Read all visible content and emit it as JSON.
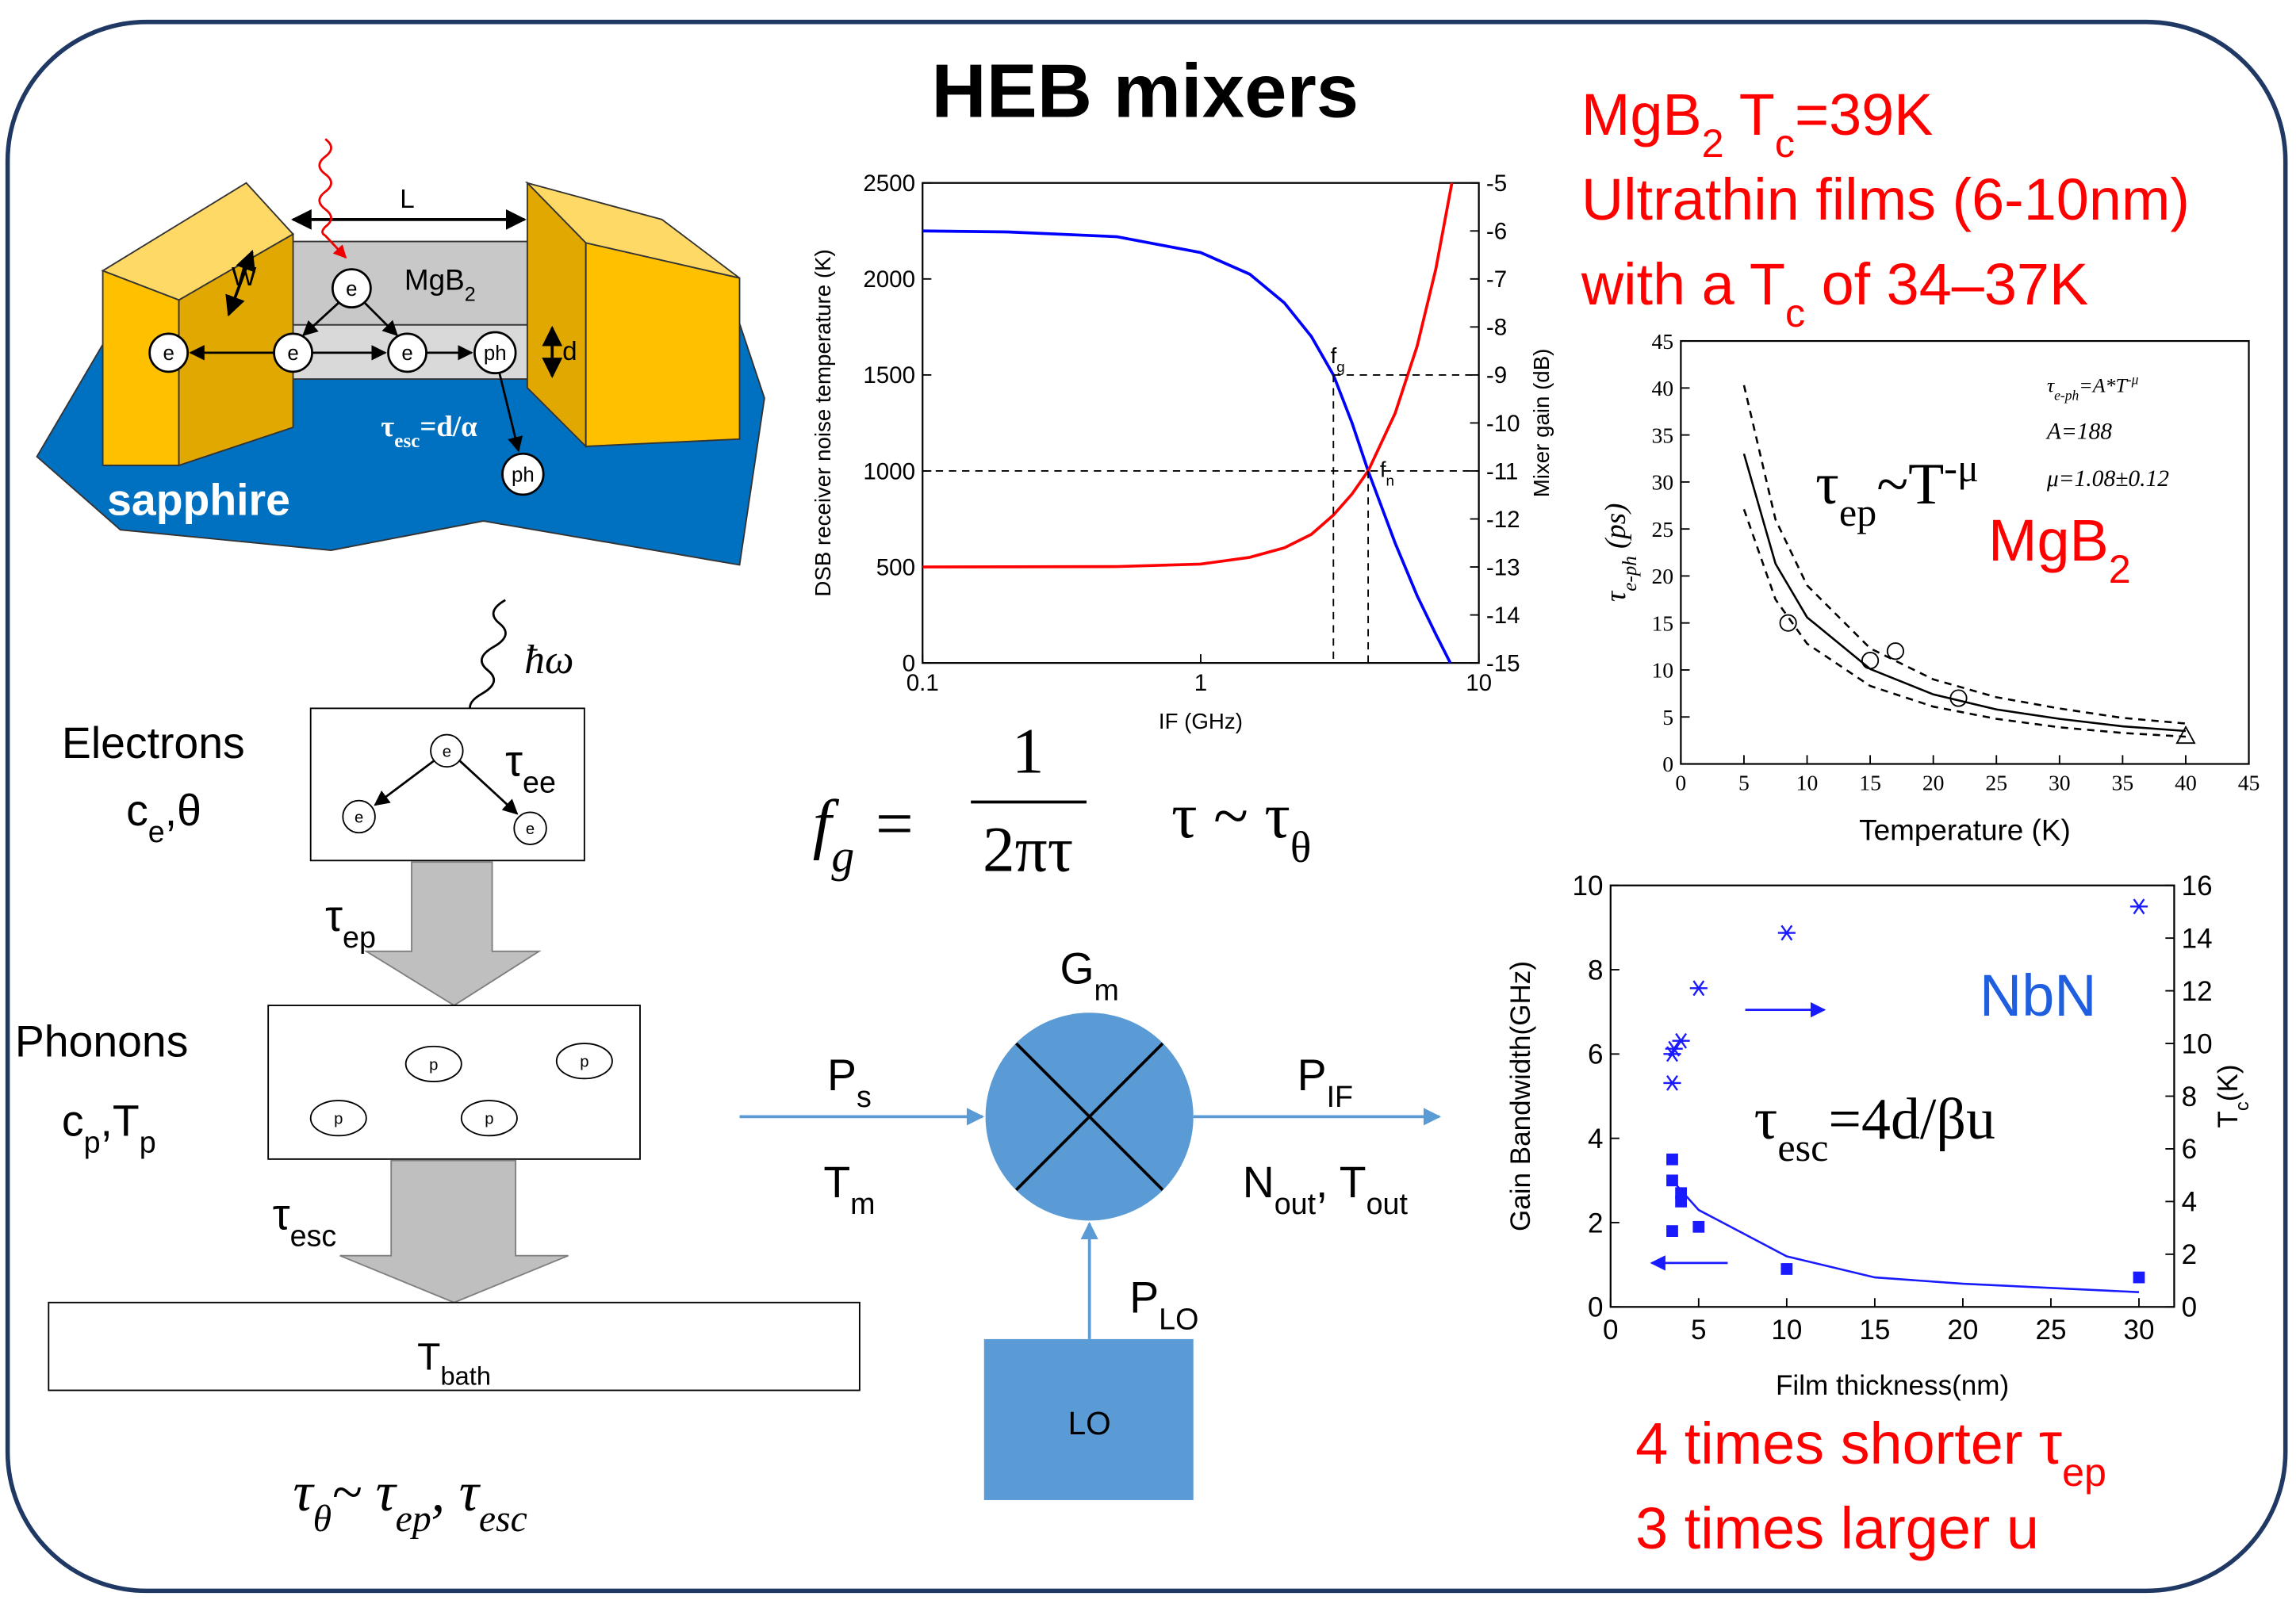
{
  "title": "HEB mixers",
  "notes": {
    "line1": [
      "MgB",
      "2",
      " T",
      "c",
      "=39K"
    ],
    "line2": "Ultrathin films (6-10nm)",
    "line3": [
      "with a T",
      "c",
      " of 34–37K"
    ],
    "line4": [
      "4 times shorter τ",
      "ep"
    ],
    "line5": "3 times larger u"
  },
  "device": {
    "length": "L",
    "width": "W",
    "film": [
      "MgB",
      "2"
    ],
    "electrons": [
      "e",
      "e",
      "e",
      "e"
    ],
    "phonons": [
      "ph",
      "ph"
    ],
    "thickness": "d",
    "escape": [
      "τ",
      "esc",
      "=d/α"
    ],
    "substrate": "sapphire"
  },
  "thermal": {
    "photon": "ħω",
    "electrons": "Electrons",
    "electron_params": [
      "c",
      "e",
      ",θ"
    ],
    "tau_ee": [
      "τ",
      "ee"
    ],
    "electron_labels": [
      "e",
      "e",
      "e"
    ],
    "tau_ep": [
      "τ",
      "ep"
    ],
    "phonons": "Phonons",
    "phonon_params": [
      "c",
      "p",
      ",T",
      "p"
    ],
    "phonon_labels": [
      "p",
      "p",
      "p",
      "p"
    ],
    "tau_esc": [
      "τ",
      "esc"
    ],
    "bath": [
      "T",
      "bath"
    ],
    "formula": [
      "τ",
      "θ",
      "~ τ",
      "ep",
      ", τ",
      "esc"
    ]
  },
  "formulas": {
    "fg": [
      "f",
      "g",
      " = "
    ],
    "numerator": "1",
    "denominator": "2πτ",
    "tau": [
      "τ ~ τ",
      "θ"
    ]
  },
  "mixer": {
    "gain": [
      "G",
      "m"
    ],
    "signal": [
      "P",
      "s"
    ],
    "signal_temp": [
      "T",
      "m"
    ],
    "output": [
      "P",
      "IF"
    ],
    "output_noise": [
      "N",
      "out",
      ", T",
      "out"
    ],
    "lo_power": [
      "P",
      "LO"
    ],
    "lo": "LO"
  },
  "chart_data": [
    {
      "type": "line",
      "xlabel": "IF (GHz)",
      "ylabel": "DSB receiver noise temperature (K)",
      "y2label": "Mixer gain (dB)",
      "xlog": true,
      "xlim": [
        0.1,
        10
      ],
      "xticks": [
        0.1,
        1,
        10
      ],
      "ylim": [
        0,
        2500
      ],
      "yticks": [
        0,
        500,
        1000,
        1500,
        2000,
        2500
      ],
      "y2lim": [
        -15,
        -5
      ],
      "y2ticks": [
        -15,
        -14,
        -13,
        -12,
        -11,
        -10,
        -9,
        -8,
        -7,
        -6,
        -5
      ],
      "series": [
        {
          "color": "#0000ff",
          "axis": "y2",
          "x": [
            0.1,
            0.2,
            0.5,
            1,
            1.5,
            2,
            2.5,
            3,
            3.5,
            4,
            5,
            6,
            7,
            7.9
          ],
          "values": [
            -6.0,
            -6.02,
            -6.12,
            -6.45,
            -6.9,
            -7.5,
            -8.2,
            -9.0,
            -10.0,
            -11.0,
            -12.5,
            -13.6,
            -14.4,
            -15.0
          ]
        },
        {
          "color": "#ff0000",
          "x": [
            0.1,
            0.5,
            1,
            1.5,
            2,
            2.5,
            3,
            3.5,
            4,
            5,
            6,
            7,
            8
          ],
          "values": [
            500,
            502,
            515,
            550,
            600,
            670,
            770,
            880,
            1000,
            1300,
            1650,
            2050,
            2500
          ]
        }
      ],
      "annotations": [
        {
          "text": [
            "f",
            "g"
          ],
          "x": 3,
          "y": 1500
        },
        {
          "text": [
            "f",
            "n"
          ],
          "x": 4,
          "y": 1000
        }
      ]
    },
    {
      "type": "scatter",
      "xlabel": "Temperature (K)",
      "ylabel": [
        "τ",
        "e-ph",
        " (ps)"
      ],
      "xlim": [
        0,
        45
      ],
      "xticks": [
        0,
        5,
        10,
        15,
        20,
        25,
        30,
        35,
        40,
        45
      ],
      "ylim": [
        0,
        45
      ],
      "yticks": [
        0,
        5,
        10,
        15,
        20,
        25,
        30,
        35,
        40,
        45
      ],
      "series": [
        {
          "marker": "circle",
          "color": "#000000",
          "x": [
            8.5,
            15,
            17,
            22
          ],
          "values": [
            15,
            11,
            12,
            7
          ]
        },
        {
          "marker": "triangle",
          "color": "#000000",
          "x": [
            40
          ],
          "values": [
            3
          ]
        },
        {
          "color": "#000000",
          "x": [
            5,
            7.5,
            10,
            15,
            20,
            25,
            30,
            35,
            40
          ],
          "values": [
            33.0,
            21.3,
            15.6,
            10.1,
            7.4,
            5.8,
            4.8,
            4.0,
            3.5
          ]
        },
        {
          "color": "#000000",
          "dash": true,
          "x": [
            5,
            7.5,
            10,
            15,
            20,
            25,
            30,
            35,
            40
          ],
          "values": [
            40.3,
            26.0,
            19.0,
            12.3,
            9.0,
            7.1,
            5.9,
            4.9,
            4.3
          ]
        },
        {
          "color": "#000000",
          "dash": true,
          "x": [
            5,
            7.5,
            10,
            15,
            20,
            25,
            30,
            35,
            40
          ],
          "values": [
            27.1,
            17.5,
            12.8,
            8.3,
            6.1,
            4.8,
            3.9,
            3.3,
            2.9
          ]
        }
      ],
      "annotations": [
        [
          "τ",
          "e-ph",
          "=A*T",
          "-μ"
        ],
        "A=188",
        "μ=1.08±0.12",
        [
          "τ",
          "ep",
          "~T",
          "-μ"
        ],
        [
          "MgB",
          "2"
        ]
      ]
    },
    {
      "type": "scatter",
      "xlabel": "Film thickness(nm)",
      "ylabel": "Gain Bandwidth(GHz)",
      "y2label": [
        "T",
        "c",
        "(K)"
      ],
      "xlim": [
        0,
        32
      ],
      "xticks": [
        0,
        5,
        10,
        15,
        20,
        25,
        30
      ],
      "ylim": [
        0,
        10
      ],
      "yticks": [
        0,
        2,
        4,
        6,
        8,
        10
      ],
      "y2lim": [
        0,
        16
      ],
      "y2ticks": [
        0,
        2,
        4,
        6,
        8,
        10,
        12,
        14,
        16
      ],
      "series": [
        {
          "marker": "square",
          "color": "#1a1aff",
          "x": [
            3.5,
            3.5,
            4,
            4,
            3.5,
            5,
            10,
            30
          ],
          "values": [
            3.5,
            3.0,
            2.7,
            2.5,
            1.8,
            1.9,
            0.9,
            0.7
          ]
        },
        {
          "color": "#1a1aff",
          "x": [
            3.5,
            5,
            10,
            15,
            20,
            30
          ],
          "values": [
            3.0,
            2.3,
            1.2,
            0.7,
            0.55,
            0.35
          ]
        },
        {
          "marker": "star",
          "color": "#1a1aff",
          "axis": "y2",
          "x": [
            3.5,
            3.5,
            3.6,
            4,
            5,
            10,
            30
          ],
          "values": [
            8.5,
            9.6,
            9.8,
            10.1,
            12.1,
            14.2,
            15.2
          ]
        }
      ],
      "annotations": [
        "NbN",
        [
          "τ",
          "esc",
          "=4d/βu"
        ]
      ]
    }
  ]
}
